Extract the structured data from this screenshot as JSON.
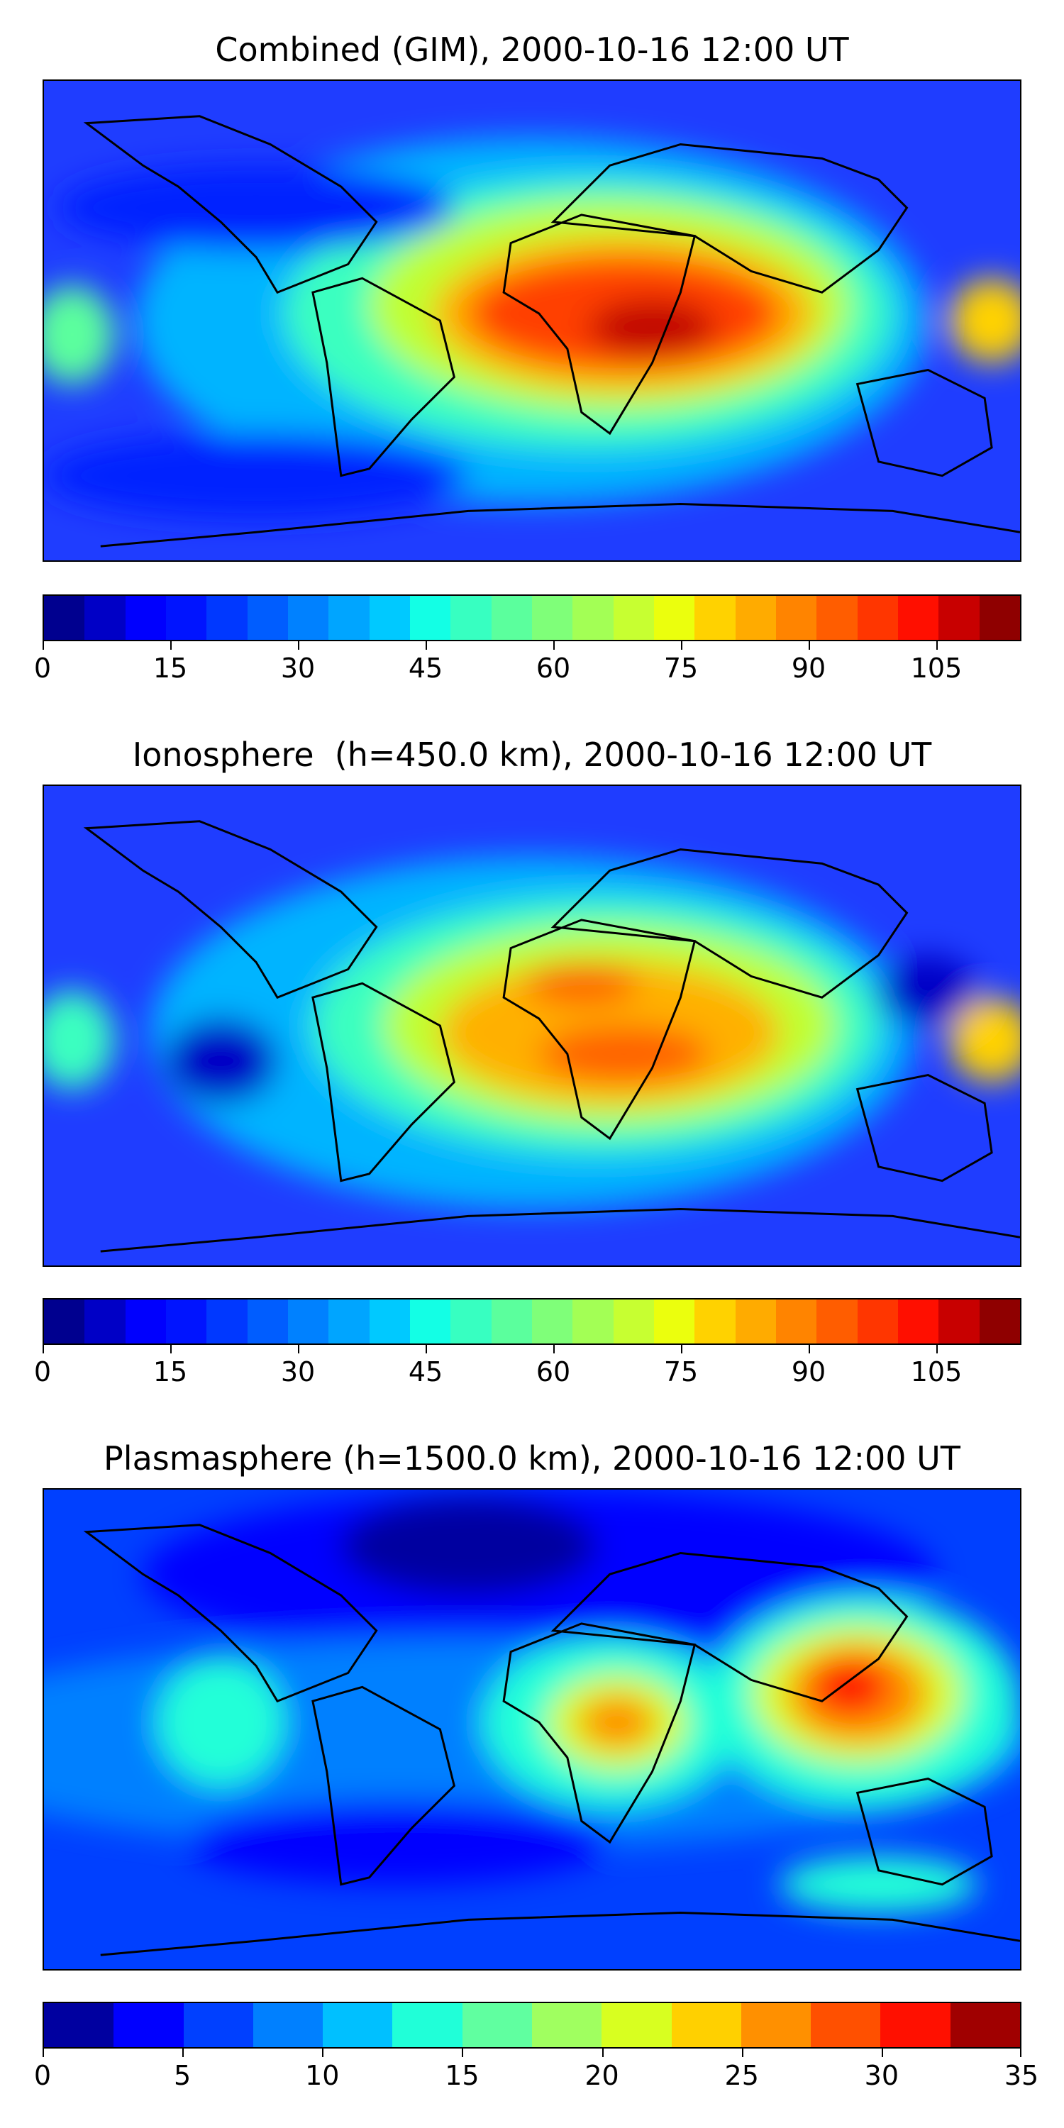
{
  "panels": [
    {
      "title": "Combined (GIM), 2000-10-16 12:00 UT",
      "colorbar": {
        "colors": [
          "#00008f",
          "#0000c6",
          "#0000fe",
          "#0014ff",
          "#0038ff",
          "#005dff",
          "#0081ff",
          "#00a5ff",
          "#00c9ff",
          "#13ffe5",
          "#37ffc1",
          "#5bff9d",
          "#7fff79",
          "#a3ff55",
          "#c7ff31",
          "#ebff0d",
          "#ffd200",
          "#ffab00",
          "#ff8400",
          "#ff5d00",
          "#ff3600",
          "#ff0f00",
          "#c80000",
          "#8f0000"
        ],
        "ticks": [
          "0",
          "15",
          "30",
          "45",
          "60",
          "75",
          "90",
          "105"
        ],
        "tick_values": [
          0,
          15,
          30,
          45,
          60,
          75,
          90,
          105
        ],
        "min": 0,
        "max": 115
      }
    },
    {
      "title": "Ionosphere  (h=450.0 km), 2000-10-16 12:00 UT",
      "colorbar": {
        "colors": [
          "#00008f",
          "#0000c6",
          "#0000fe",
          "#0014ff",
          "#0038ff",
          "#005dff",
          "#0081ff",
          "#00a5ff",
          "#00c9ff",
          "#13ffe5",
          "#37ffc1",
          "#5bff9d",
          "#7fff79",
          "#a3ff55",
          "#c7ff31",
          "#ebff0d",
          "#ffd200",
          "#ffab00",
          "#ff8400",
          "#ff5d00",
          "#ff3600",
          "#ff0f00",
          "#c80000",
          "#8f0000"
        ],
        "ticks": [
          "0",
          "15",
          "30",
          "45",
          "60",
          "75",
          "90",
          "105"
        ],
        "tick_values": [
          0,
          15,
          30,
          45,
          60,
          75,
          90,
          105
        ],
        "min": 0,
        "max": 115
      }
    },
    {
      "title": "Plasmasphere (h=1500.0 km), 2000-10-16 12:00 UT",
      "colorbar": {
        "colors": [
          "#0000a0",
          "#0000ff",
          "#0040ff",
          "#0080ff",
          "#00c0ff",
          "#20ffd8",
          "#60ffa0",
          "#a0ff60",
          "#d8ff20",
          "#ffd000",
          "#ff9000",
          "#ff5000",
          "#ff1000",
          "#a00000"
        ],
        "ticks": [
          "0",
          "5",
          "10",
          "15",
          "20",
          "25",
          "30",
          "35"
        ],
        "tick_values": [
          0,
          5,
          10,
          15,
          20,
          25,
          30,
          35
        ],
        "min": 0,
        "max": 35
      }
    }
  ]
}
